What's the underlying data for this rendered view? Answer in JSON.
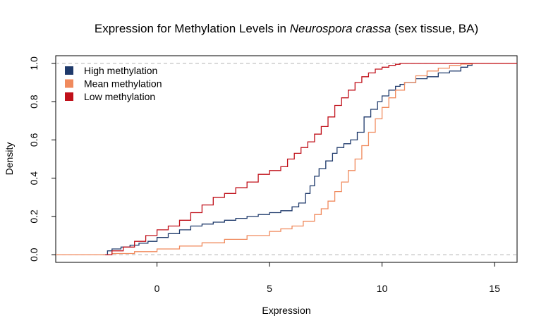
{
  "chart_data": {
    "type": "line",
    "title_prefix": "Expression for Methylation Levels in ",
    "title_italic": "Neurospora crassa",
    "title_suffix": " (sex tissue, BA)",
    "xlabel": "Expression",
    "ylabel": "Density",
    "xlim": [
      -4.5,
      16
    ],
    "ylim": [
      -0.04,
      1.04
    ],
    "xticks": [
      0,
      5,
      10,
      15
    ],
    "yticks": [
      0.0,
      0.2,
      0.4,
      0.6,
      0.8,
      1.0
    ],
    "xtick_labels": [
      "0",
      "5",
      "10",
      "15"
    ],
    "ytick_labels": [
      "0.0",
      "0.2",
      "0.4",
      "0.6",
      "0.8",
      "1.0"
    ],
    "reference_lines": [
      0,
      1
    ],
    "legend_position": "top-left",
    "series": [
      {
        "name": "High methylation",
        "color": "#1f3a6b",
        "x": [
          -2.4,
          -2.2,
          -2.0,
          -1.6,
          -1.2,
          -0.8,
          -0.4,
          0.0,
          0.5,
          1.0,
          1.5,
          2.0,
          2.5,
          3.0,
          3.5,
          4.0,
          4.5,
          5.0,
          5.5,
          6.0,
          6.3,
          6.6,
          6.8,
          7.0,
          7.2,
          7.5,
          7.8,
          8.0,
          8.3,
          8.6,
          8.9,
          9.2,
          9.5,
          9.8,
          10.0,
          10.3,
          10.6,
          10.8,
          11.0,
          11.5,
          12.0,
          12.5,
          13.0,
          13.5,
          13.8,
          14.0
        ],
        "y": [
          0.0,
          0.02,
          0.03,
          0.04,
          0.05,
          0.06,
          0.07,
          0.09,
          0.11,
          0.13,
          0.15,
          0.16,
          0.17,
          0.18,
          0.19,
          0.2,
          0.21,
          0.22,
          0.23,
          0.25,
          0.27,
          0.32,
          0.36,
          0.41,
          0.45,
          0.49,
          0.53,
          0.56,
          0.58,
          0.6,
          0.64,
          0.72,
          0.76,
          0.8,
          0.83,
          0.86,
          0.88,
          0.89,
          0.9,
          0.92,
          0.93,
          0.95,
          0.96,
          0.98,
          0.99,
          1.0
        ]
      },
      {
        "name": "Mean methylation",
        "color": "#f08a5d",
        "x": [
          -4.5,
          -3.0,
          -2.3,
          -2.0,
          -1.0,
          0.0,
          1.0,
          2.0,
          3.0,
          4.0,
          5.0,
          5.5,
          6.0,
          6.5,
          7.0,
          7.3,
          7.6,
          7.9,
          8.2,
          8.5,
          8.8,
          9.1,
          9.4,
          9.7,
          10.0,
          10.3,
          10.6,
          11.0,
          11.5,
          12.0,
          12.5,
          13.0,
          13.5,
          14.0,
          16.0
        ],
        "y": [
          0.0,
          0.0,
          0.0,
          0.006,
          0.016,
          0.03,
          0.045,
          0.062,
          0.08,
          0.1,
          0.122,
          0.135,
          0.15,
          0.175,
          0.21,
          0.24,
          0.28,
          0.33,
          0.38,
          0.44,
          0.5,
          0.57,
          0.64,
          0.71,
          0.77,
          0.82,
          0.86,
          0.9,
          0.935,
          0.96,
          0.975,
          0.99,
          0.996,
          1.0,
          1.0
        ]
      },
      {
        "name": "Low methylation",
        "color": "#c0101a",
        "x": [
          -2.3,
          -2.0,
          -1.5,
          -1.0,
          -0.5,
          0.0,
          0.5,
          1.0,
          1.5,
          2.0,
          2.5,
          3.0,
          3.5,
          4.0,
          4.5,
          5.0,
          5.5,
          5.8,
          6.1,
          6.4,
          6.7,
          7.0,
          7.3,
          7.6,
          7.9,
          8.2,
          8.5,
          8.8,
          9.1,
          9.4,
          9.7,
          10.0,
          10.3,
          10.6,
          10.8,
          11.5,
          14.0,
          16.0
        ],
        "y": [
          0.0,
          0.02,
          0.04,
          0.07,
          0.1,
          0.13,
          0.15,
          0.18,
          0.22,
          0.26,
          0.3,
          0.32,
          0.35,
          0.38,
          0.42,
          0.44,
          0.46,
          0.5,
          0.53,
          0.56,
          0.59,
          0.63,
          0.67,
          0.72,
          0.78,
          0.82,
          0.86,
          0.9,
          0.93,
          0.95,
          0.97,
          0.98,
          0.99,
          0.995,
          1.0,
          1.0,
          1.0,
          1.0
        ]
      }
    ]
  }
}
